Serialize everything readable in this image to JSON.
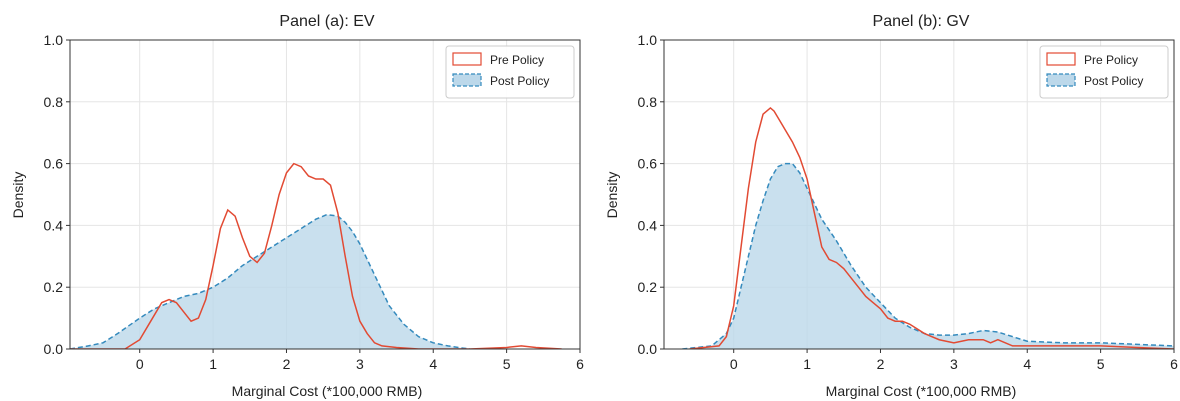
{
  "colors": {
    "pre": "#e24a33",
    "post_line": "#348abd",
    "post_fill": "#bcd8ea",
    "grid": "#e5e5e5",
    "axis": "#333333"
  },
  "chart_data": [
    {
      "type": "area",
      "title": "Panel (a): EV",
      "xlabel": "Marginal Cost (*100,000 RMB)",
      "ylabel": "Density",
      "xlim": [
        -0.95,
        6
      ],
      "ylim": [
        0,
        1.0
      ],
      "xticks": [
        0,
        1,
        2,
        3,
        4,
        5,
        6
      ],
      "yticks": [
        0.0,
        0.2,
        0.4,
        0.6,
        0.8,
        1.0
      ],
      "grid": true,
      "legend_position": "top-right",
      "series": [
        {
          "name": "Pre Policy",
          "style": "line",
          "x": [
            -0.95,
            -0.2,
            0.0,
            0.15,
            0.3,
            0.4,
            0.5,
            0.6,
            0.7,
            0.8,
            0.9,
            1.0,
            1.1,
            1.2,
            1.3,
            1.4,
            1.5,
            1.6,
            1.7,
            1.8,
            1.9,
            2.0,
            2.1,
            2.2,
            2.3,
            2.4,
            2.5,
            2.6,
            2.7,
            2.8,
            2.9,
            3.0,
            3.1,
            3.2,
            3.3,
            3.5,
            3.8,
            4.5,
            5.0,
            5.2,
            5.4,
            5.75
          ],
          "y": [
            0.0,
            0.0,
            0.03,
            0.09,
            0.15,
            0.16,
            0.15,
            0.12,
            0.09,
            0.1,
            0.16,
            0.27,
            0.39,
            0.45,
            0.43,
            0.36,
            0.3,
            0.28,
            0.31,
            0.4,
            0.5,
            0.57,
            0.6,
            0.59,
            0.56,
            0.55,
            0.55,
            0.53,
            0.44,
            0.3,
            0.17,
            0.09,
            0.05,
            0.02,
            0.01,
            0.005,
            0.0,
            0.0,
            0.005,
            0.01,
            0.005,
            0.0
          ]
        },
        {
          "name": "Post Policy",
          "style": "area-dashed",
          "x": [
            -0.95,
            -0.7,
            -0.5,
            -0.3,
            0.0,
            0.2,
            0.4,
            0.6,
            0.8,
            1.0,
            1.2,
            1.4,
            1.6,
            1.8,
            2.0,
            2.2,
            2.4,
            2.55,
            2.7,
            2.8,
            2.9,
            3.0,
            3.1,
            3.2,
            3.3,
            3.4,
            3.6,
            3.8,
            4.0,
            4.2,
            4.4,
            4.5
          ],
          "y": [
            0.0,
            0.01,
            0.02,
            0.05,
            0.1,
            0.13,
            0.15,
            0.17,
            0.18,
            0.2,
            0.23,
            0.27,
            0.3,
            0.33,
            0.36,
            0.39,
            0.42,
            0.435,
            0.43,
            0.41,
            0.38,
            0.34,
            0.29,
            0.24,
            0.19,
            0.14,
            0.08,
            0.04,
            0.02,
            0.01,
            0.003,
            0.0
          ]
        }
      ]
    },
    {
      "type": "area",
      "title": "Panel (b): GV",
      "xlabel": "Marginal Cost (*100,000 RMB)",
      "ylabel": "Density",
      "xlim": [
        -0.95,
        6
      ],
      "ylim": [
        0,
        1.0
      ],
      "xticks": [
        0,
        1,
        2,
        3,
        4,
        5,
        6
      ],
      "yticks": [
        0.0,
        0.2,
        0.4,
        0.6,
        0.8,
        1.0
      ],
      "grid": true,
      "legend_position": "top-right",
      "series": [
        {
          "name": "Pre Policy",
          "style": "line",
          "x": [
            -0.6,
            -0.2,
            -0.1,
            0.0,
            0.1,
            0.2,
            0.3,
            0.4,
            0.5,
            0.55,
            0.6,
            0.7,
            0.8,
            0.9,
            1.0,
            1.1,
            1.2,
            1.3,
            1.4,
            1.5,
            1.6,
            1.7,
            1.8,
            1.9,
            2.0,
            2.1,
            2.2,
            2.3,
            2.4,
            2.6,
            2.8,
            3.0,
            3.2,
            3.4,
            3.5,
            3.6,
            3.8,
            4.0,
            4.5,
            5.0,
            5.5,
            6.0
          ],
          "y": [
            0.0,
            0.01,
            0.04,
            0.14,
            0.33,
            0.52,
            0.67,
            0.76,
            0.78,
            0.77,
            0.75,
            0.71,
            0.67,
            0.62,
            0.55,
            0.44,
            0.33,
            0.29,
            0.28,
            0.26,
            0.23,
            0.2,
            0.17,
            0.15,
            0.13,
            0.1,
            0.09,
            0.09,
            0.08,
            0.05,
            0.03,
            0.02,
            0.03,
            0.03,
            0.02,
            0.03,
            0.01,
            0.01,
            0.01,
            0.01,
            0.005,
            0.0
          ]
        },
        {
          "name": "Post Policy",
          "style": "area-dashed",
          "x": [
            -0.7,
            -0.3,
            -0.1,
            0.0,
            0.1,
            0.2,
            0.3,
            0.4,
            0.5,
            0.6,
            0.7,
            0.8,
            0.9,
            1.0,
            1.2,
            1.4,
            1.6,
            1.8,
            2.0,
            2.2,
            2.4,
            2.6,
            2.8,
            3.0,
            3.2,
            3.4,
            3.6,
            3.8,
            4.0,
            4.5,
            5.0,
            5.5,
            6.0
          ],
          "y": [
            0.0,
            0.01,
            0.05,
            0.1,
            0.2,
            0.3,
            0.4,
            0.48,
            0.55,
            0.59,
            0.6,
            0.6,
            0.57,
            0.52,
            0.42,
            0.35,
            0.27,
            0.2,
            0.15,
            0.1,
            0.07,
            0.05,
            0.045,
            0.045,
            0.05,
            0.06,
            0.055,
            0.04,
            0.025,
            0.02,
            0.02,
            0.015,
            0.01
          ]
        }
      ]
    }
  ]
}
